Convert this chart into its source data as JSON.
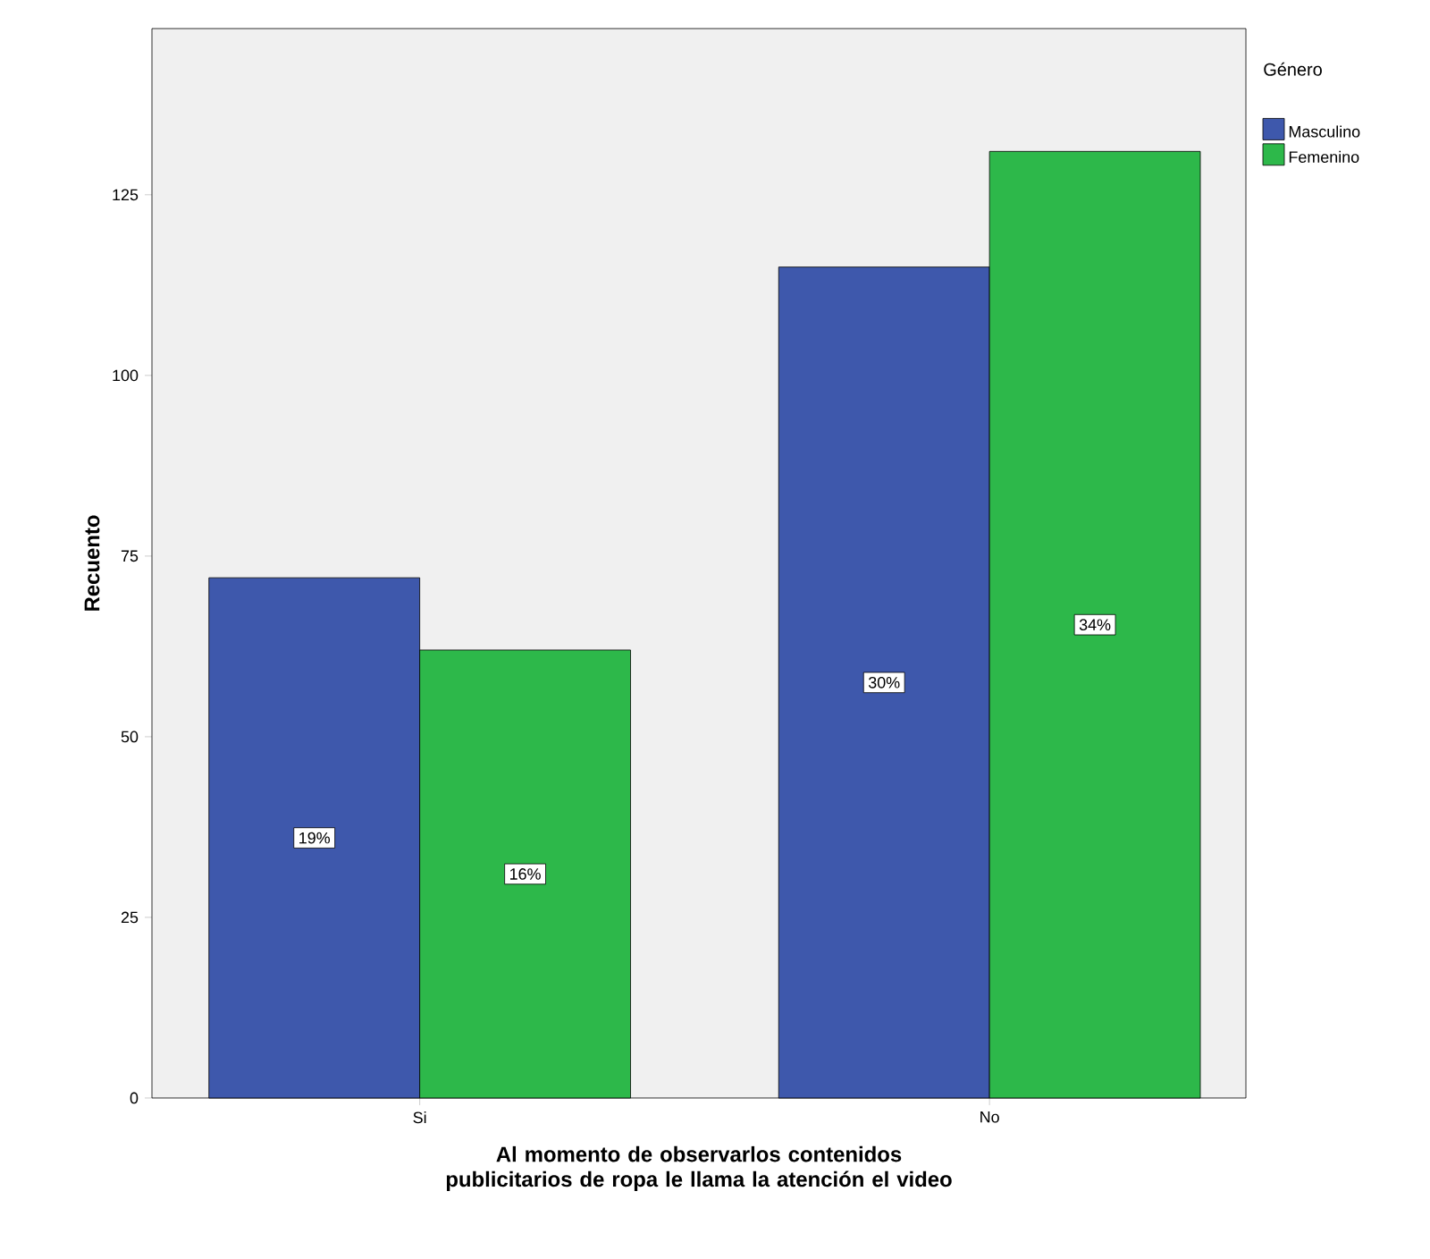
{
  "chart_data": {
    "type": "bar",
    "xlabel": "Al momento de observarlos contenidos publicitarios de ropa le llama la atención el video",
    "ylabel": "Recuento",
    "legend_title": "Género",
    "categories": [
      "Si",
      "No"
    ],
    "series": [
      {
        "name": "Masculino",
        "color": "#3e58ac",
        "values": [
          72,
          115
        ]
      },
      {
        "name": "Femenino",
        "color": "#2db84a",
        "values": [
          62,
          131
        ]
      }
    ],
    "annotations": [
      "19%",
      "16%",
      "30%",
      "34%"
    ],
    "ylim": [
      0,
      148
    ],
    "yticks": [
      0,
      25,
      50,
      75,
      100,
      125
    ],
    "grid": false,
    "legend": "top right"
  }
}
